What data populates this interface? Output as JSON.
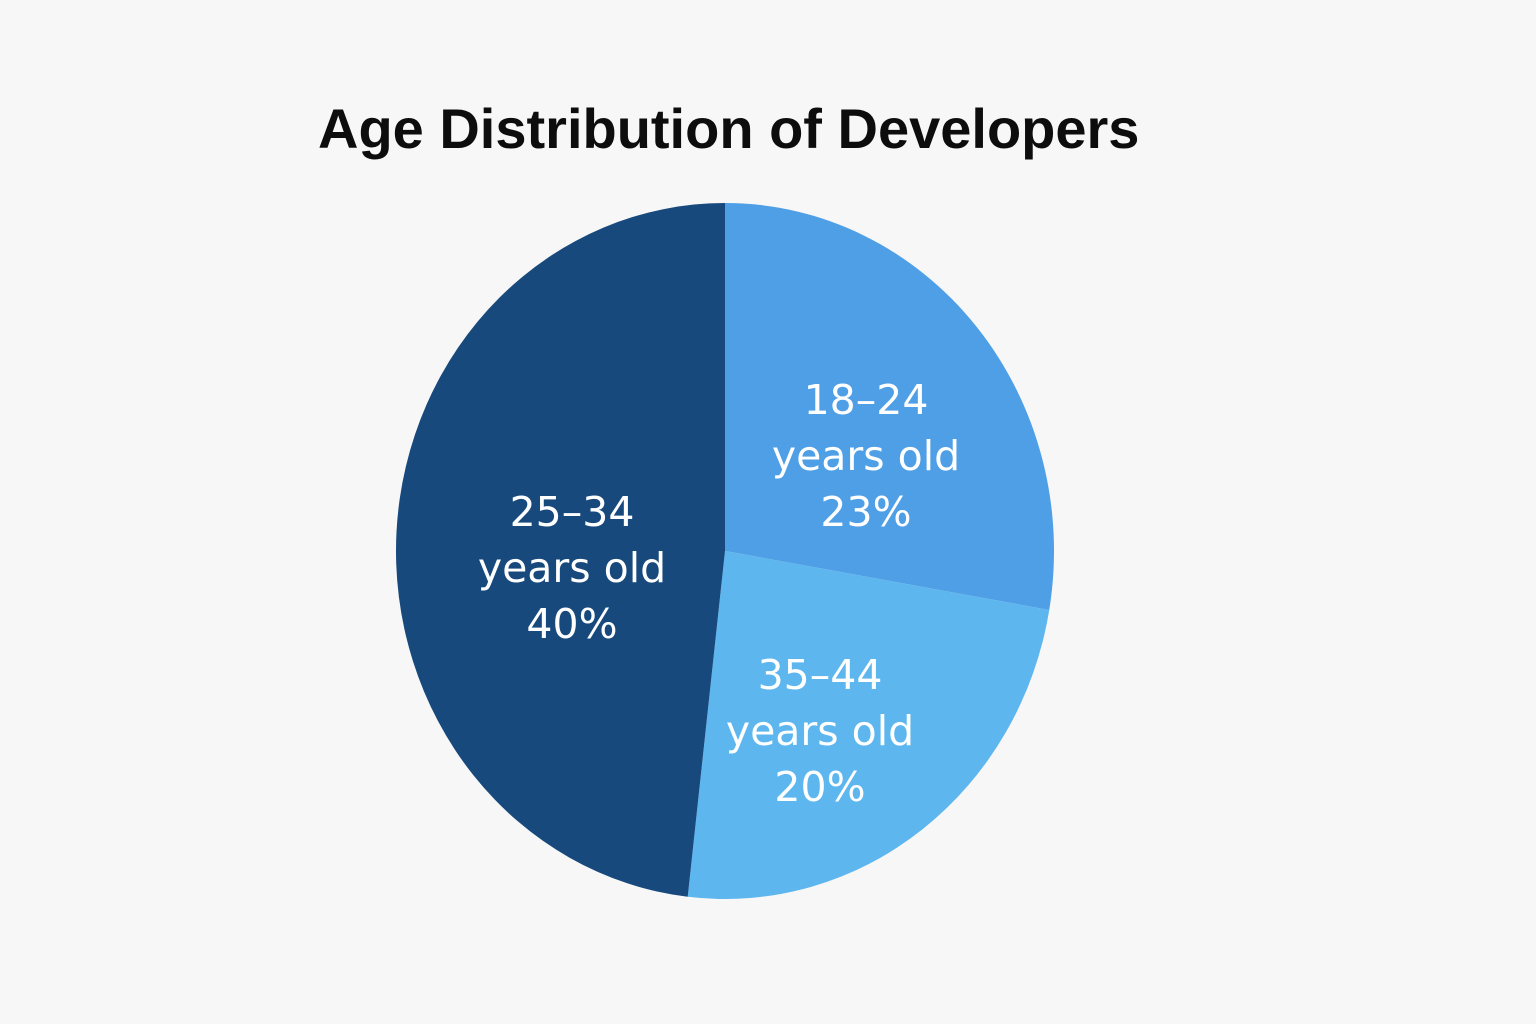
{
  "chart_data": {
    "type": "pie",
    "title": "Age Distribution of Developers",
    "slices": [
      {
        "label": "18–24",
        "sublabel": "years old",
        "value": 23,
        "value_text": "23%",
        "color": "#4f9fe6"
      },
      {
        "label": "35–44",
        "sublabel": "years old",
        "value": 20,
        "value_text": "20%",
        "color": "#5db6ee"
      },
      {
        "label": "25–34",
        "sublabel": "years old",
        "value": 40,
        "value_text": "40%",
        "color": "#17497d"
      }
    ],
    "legend": "none",
    "start": "12 o'clock",
    "direction": "clockwise"
  }
}
